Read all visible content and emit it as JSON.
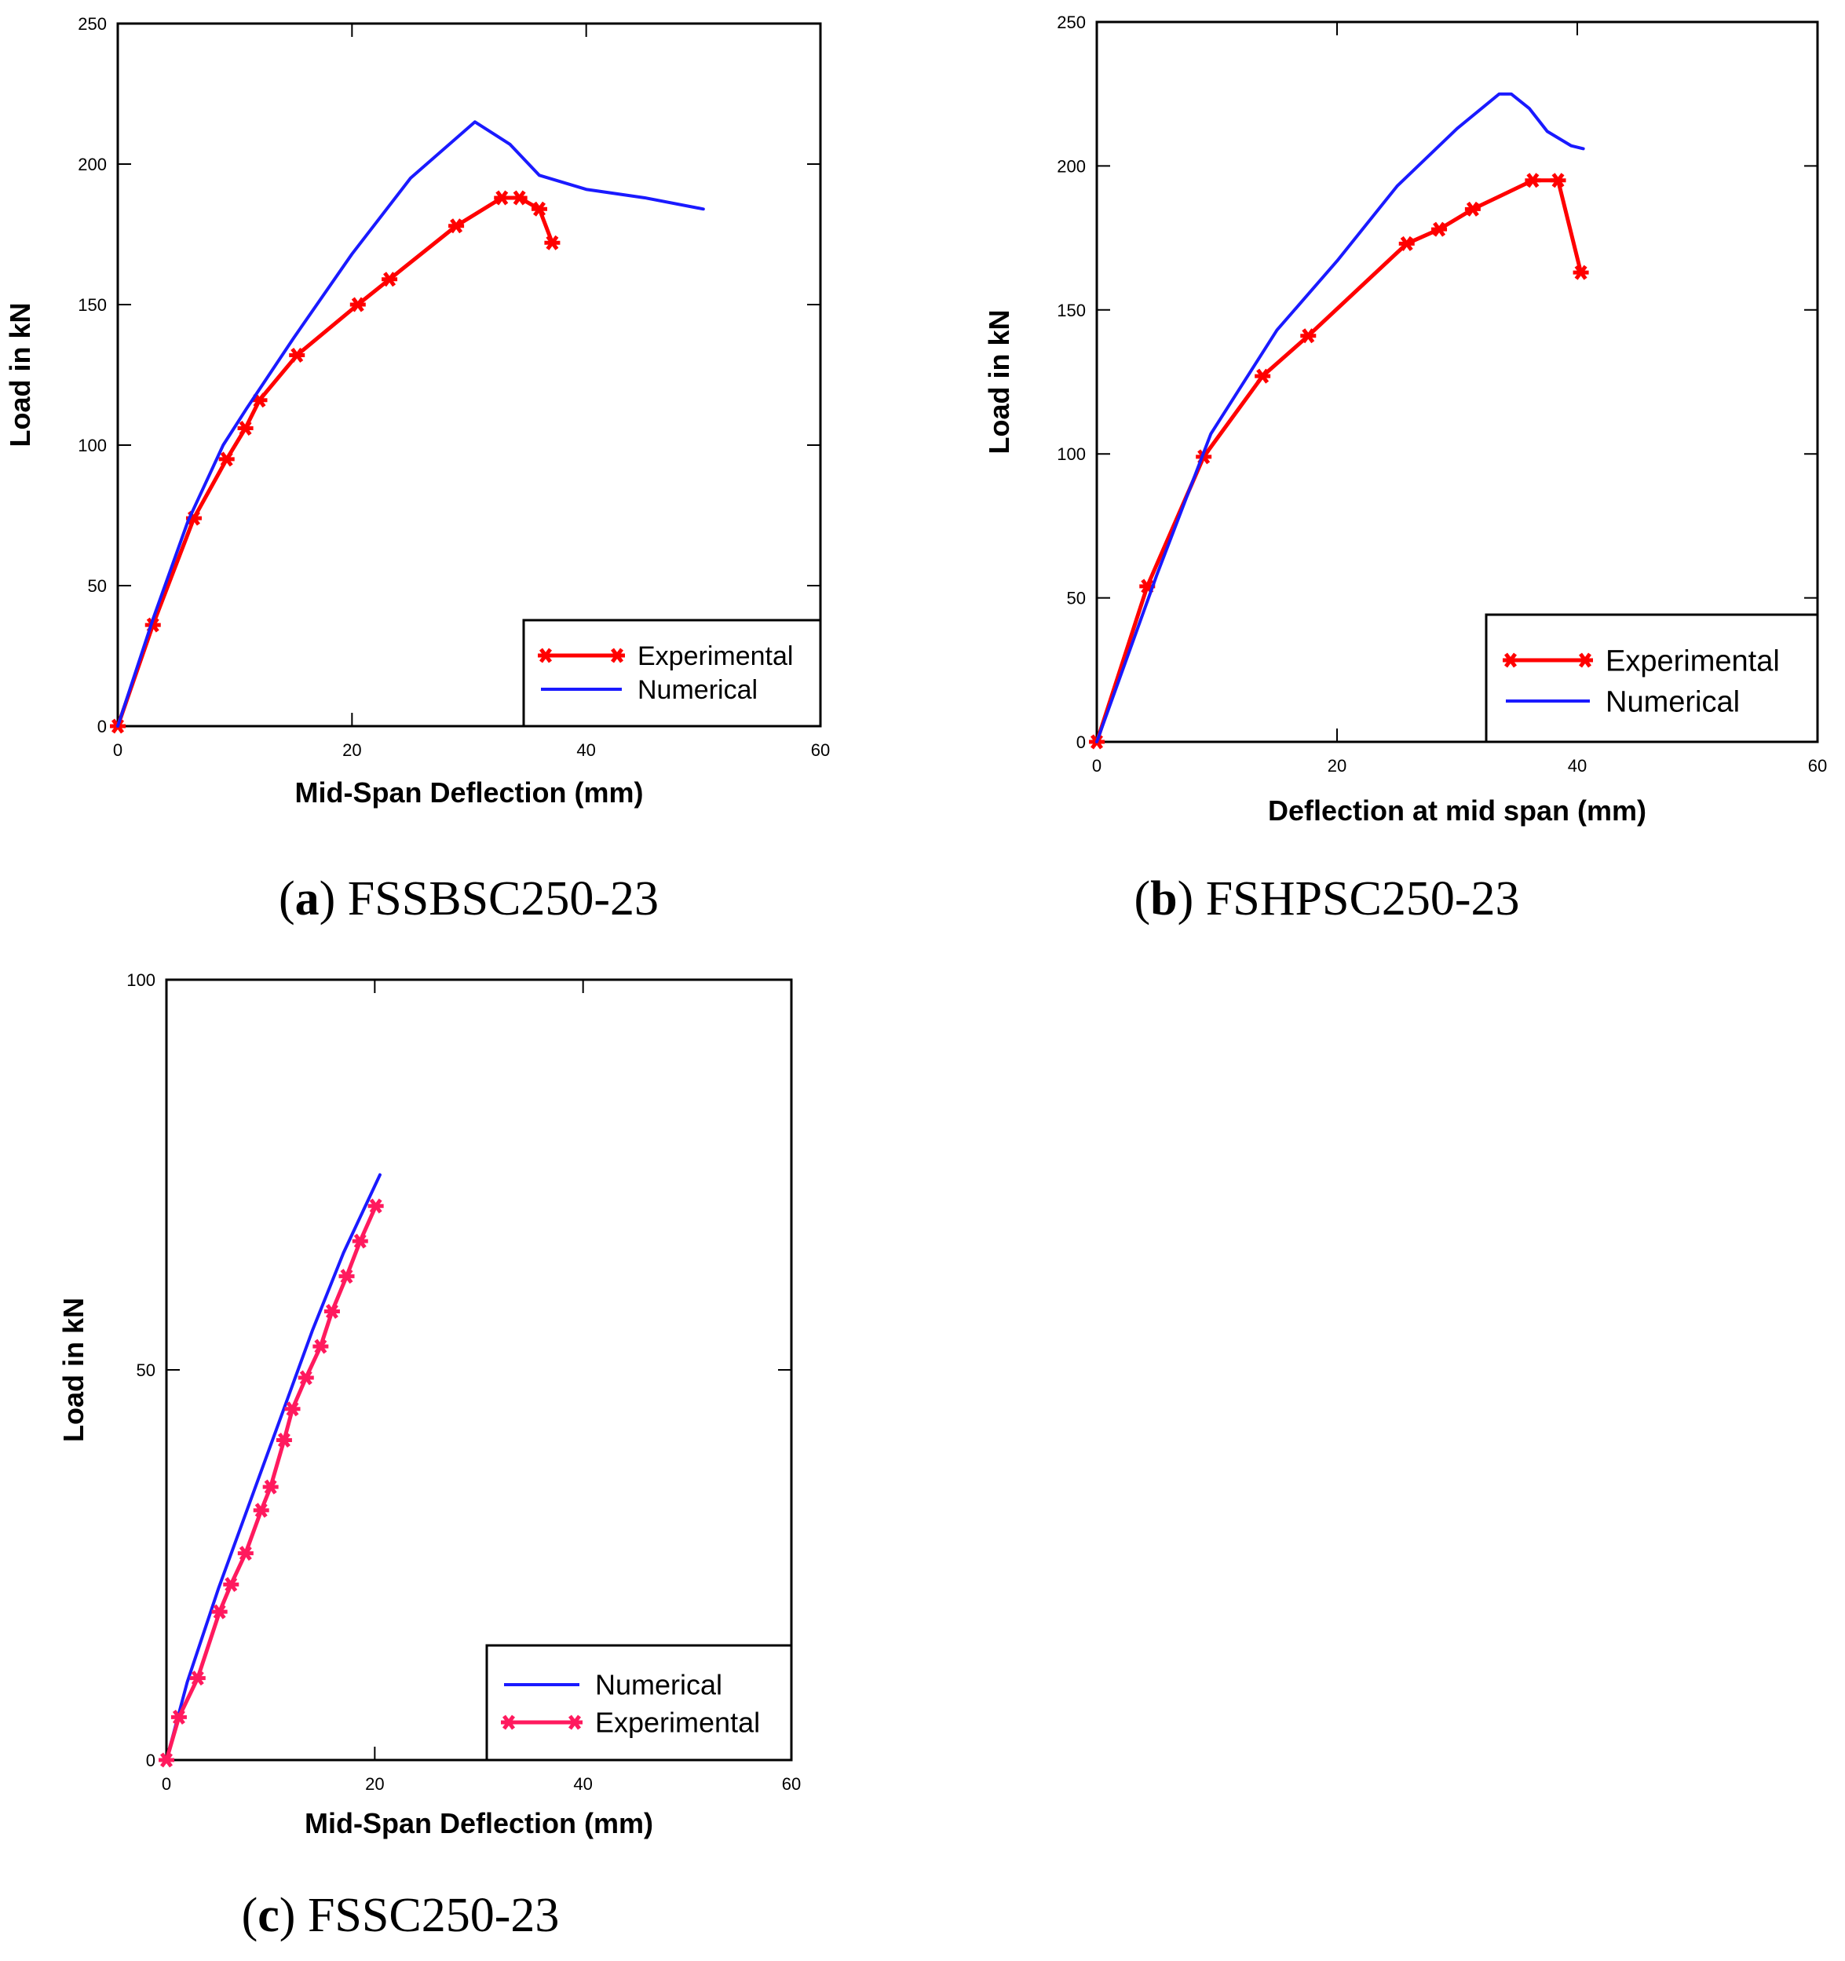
{
  "colors": {
    "experimental_ab": "#ff0000",
    "experimental_c": "#ff1a5e",
    "numerical": "#1a1aff"
  },
  "chart_data": [
    {
      "type": "line",
      "id": "a",
      "caption_letter": "a",
      "caption_text": "FSSBSC250-23",
      "xlabel": "Mid-Span Deflection (mm)",
      "ylabel": "Load in kN",
      "xlim": [
        0,
        60
      ],
      "ylim": [
        0,
        250
      ],
      "xticks": [
        0,
        20,
        40,
        60
      ],
      "yticks": [
        0,
        50,
        100,
        150,
        200,
        250
      ],
      "legend_position": "bottom-right",
      "legend_order": [
        "Experimental",
        "Numerical"
      ],
      "series": [
        {
          "name": "Experimental",
          "style": "line-star",
          "color": "#ff0000",
          "x": [
            0,
            3,
            6.5,
            9.3,
            10.9,
            12.1,
            15.3,
            20.5,
            23.2,
            28.9,
            32.8,
            34.3,
            36.0,
            37.1
          ],
          "y": [
            0,
            36,
            74,
            95,
            106,
            116,
            132,
            150,
            159,
            178,
            188,
            188,
            184,
            172
          ]
        },
        {
          "name": "Numerical",
          "style": "line",
          "color": "#1a1aff",
          "x": [
            0,
            3,
            6,
            9,
            11,
            15,
            20,
            25,
            30.5,
            33.5,
            36,
            40,
            45,
            50
          ],
          "y": [
            0,
            38,
            73,
            100,
            113,
            138,
            168,
            195,
            215,
            207,
            196,
            191,
            188,
            184
          ]
        }
      ]
    },
    {
      "type": "line",
      "id": "b",
      "caption_letter": "b",
      "caption_text": "FSHPSC250-23",
      "xlabel": "Deflection at mid span (mm)",
      "ylabel": "Load in kN",
      "xlim": [
        0,
        60
      ],
      "ylim": [
        0,
        250
      ],
      "xticks": [
        0,
        20,
        40,
        60
      ],
      "yticks": [
        0,
        50,
        100,
        150,
        200,
        250
      ],
      "legend_position": "bottom-right",
      "legend_order": [
        "Experimental",
        "Numerical"
      ],
      "series": [
        {
          "name": "Experimental",
          "style": "line-star",
          "color": "#ff0000",
          "x": [
            0,
            4.2,
            8.9,
            13.8,
            17.6,
            25.8,
            28.5,
            31.3,
            36.3,
            38.4,
            40.3
          ],
          "y": [
            0,
            54,
            99,
            127,
            141,
            173,
            178,
            185,
            195,
            195,
            163
          ]
        },
        {
          "name": "Numerical",
          "style": "line",
          "color": "#1a1aff",
          "x": [
            0,
            5,
            9.5,
            15,
            20,
            25,
            30,
            33.5,
            34.5,
            36,
            37.5,
            39.5,
            40.5
          ],
          "y": [
            0,
            58,
            107,
            143,
            167,
            193,
            213,
            225,
            225,
            220,
            212,
            207,
            206
          ]
        }
      ]
    },
    {
      "type": "line",
      "id": "c",
      "caption_letter": "c",
      "caption_text": "FSSC250-23",
      "xlabel": "Mid-Span Deflection (mm)",
      "ylabel": "Load in kN",
      "xlim": [
        0,
        60
      ],
      "ylim": [
        0,
        100
      ],
      "xticks": [
        0,
        20,
        40,
        60
      ],
      "yticks": [
        0,
        50,
        100
      ],
      "legend_position": "bottom-right",
      "legend_order": [
        "Numerical",
        "Experimental"
      ],
      "series": [
        {
          "name": "Numerical",
          "style": "line",
          "color": "#1a1aff",
          "x": [
            0,
            2,
            5,
            8,
            11,
            14,
            17,
            20.5
          ],
          "y": [
            0,
            10,
            22,
            33,
            44,
            55,
            65,
            75
          ]
        },
        {
          "name": "Experimental",
          "style": "line-star",
          "color": "#ff1a5e",
          "x": [
            0,
            1.2,
            3.0,
            5.1,
            6.2,
            7.6,
            9.1,
            10.0,
            11.3,
            12.1,
            13.4,
            14.8,
            15.9,
            17.3,
            18.6,
            20.1
          ],
          "y": [
            0,
            5.5,
            10.5,
            19,
            22.5,
            26.5,
            32,
            35,
            41,
            45,
            49,
            53,
            57.5,
            62,
            66.5,
            71
          ]
        }
      ]
    }
  ]
}
